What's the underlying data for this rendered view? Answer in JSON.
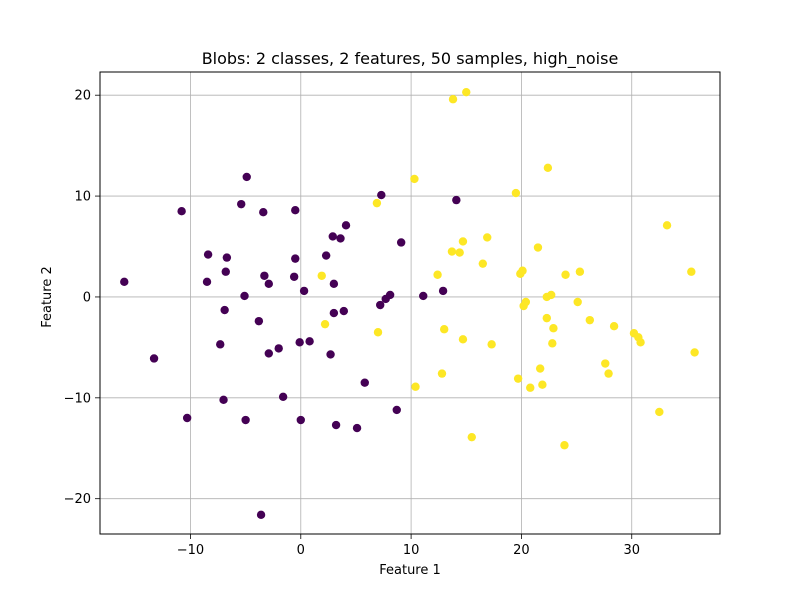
{
  "chart_data": {
    "type": "scatter",
    "title": "Blobs: 2 classes, 2 features, 50 samples, high_noise",
    "xlabel": "Feature 1",
    "ylabel": "Feature 2",
    "xlim": [
      -18.2,
      38.0
    ],
    "ylim": [
      -23.5,
      22.3
    ],
    "xticks": [
      -10,
      0,
      10,
      20,
      30
    ],
    "xtick_labels": [
      "−10",
      "0",
      "10",
      "20",
      "30"
    ],
    "yticks": [
      -20,
      -10,
      0,
      10,
      20
    ],
    "ytick_labels": [
      "−20",
      "−10",
      "0",
      "10",
      "20"
    ],
    "grid": true,
    "series": [
      {
        "color": "#440154",
        "points": [
          [
            -16.0,
            1.5
          ],
          [
            -13.3,
            -6.1
          ],
          [
            -10.8,
            8.5
          ],
          [
            -10.3,
            -12.0
          ],
          [
            -8.4,
            4.2
          ],
          [
            -8.5,
            1.5
          ],
          [
            -7.3,
            -4.7
          ],
          [
            -6.9,
            -1.3
          ],
          [
            -7.0,
            -10.2
          ],
          [
            -6.7,
            3.9
          ],
          [
            -6.8,
            2.5
          ],
          [
            -5.4,
            9.2
          ],
          [
            -5.1,
            0.1
          ],
          [
            -5.0,
            -12.2
          ],
          [
            -4.9,
            11.9
          ],
          [
            -3.8,
            -2.4
          ],
          [
            -3.6,
            -21.6
          ],
          [
            -3.4,
            8.4
          ],
          [
            -3.3,
            2.1
          ],
          [
            -2.9,
            1.3
          ],
          [
            -2.9,
            -5.6
          ],
          [
            -2.0,
            -5.1
          ],
          [
            -1.6,
            -9.9
          ],
          [
            -0.5,
            8.6
          ],
          [
            -0.5,
            3.8
          ],
          [
            -0.6,
            2.0
          ],
          [
            -0.1,
            -4.5
          ],
          [
            0.0,
            -12.2
          ],
          [
            0.3,
            0.6
          ],
          [
            0.8,
            -4.4
          ],
          [
            2.3,
            4.1
          ],
          [
            2.7,
            -5.7
          ],
          [
            2.9,
            6.0
          ],
          [
            3.0,
            -1.6
          ],
          [
            3.0,
            1.3
          ],
          [
            3.2,
            -12.7
          ],
          [
            3.6,
            5.8
          ],
          [
            3.9,
            -1.4
          ],
          [
            4.1,
            7.1
          ],
          [
            5.1,
            -13.0
          ],
          [
            5.8,
            -8.5
          ],
          [
            7.2,
            -0.8
          ],
          [
            7.3,
            10.1
          ],
          [
            7.7,
            -0.2
          ],
          [
            8.1,
            0.2
          ],
          [
            8.7,
            -11.2
          ],
          [
            9.1,
            5.4
          ],
          [
            11.1,
            0.1
          ],
          [
            12.9,
            0.6
          ],
          [
            14.1,
            9.6
          ]
        ]
      },
      {
        "color": "#fde725",
        "points": [
          [
            1.9,
            2.1
          ],
          [
            2.2,
            -2.7
          ],
          [
            6.9,
            9.3
          ],
          [
            7.0,
            -3.5
          ],
          [
            10.3,
            11.7
          ],
          [
            10.4,
            -8.9
          ],
          [
            12.4,
            2.2
          ],
          [
            12.8,
            -7.6
          ],
          [
            13.0,
            -3.2
          ],
          [
            13.7,
            4.5
          ],
          [
            13.8,
            19.6
          ],
          [
            14.4,
            4.4
          ],
          [
            14.7,
            -4.2
          ],
          [
            14.7,
            5.5
          ],
          [
            15.0,
            20.3
          ],
          [
            15.5,
            -13.9
          ],
          [
            16.5,
            3.3
          ],
          [
            16.9,
            5.9
          ],
          [
            17.3,
            -4.7
          ],
          [
            19.5,
            10.3
          ],
          [
            19.7,
            -8.1
          ],
          [
            19.9,
            2.3
          ],
          [
            20.1,
            2.6
          ],
          [
            20.2,
            -0.9
          ],
          [
            20.4,
            -0.5
          ],
          [
            20.8,
            -9.0
          ],
          [
            21.5,
            4.9
          ],
          [
            21.7,
            -7.1
          ],
          [
            21.9,
            -8.7
          ],
          [
            22.3,
            -2.1
          ],
          [
            22.3,
            0.0
          ],
          [
            22.4,
            12.8
          ],
          [
            22.7,
            0.2
          ],
          [
            22.8,
            -4.6
          ],
          [
            22.9,
            -3.1
          ],
          [
            23.9,
            -14.7
          ],
          [
            24.0,
            2.2
          ],
          [
            25.1,
            -0.5
          ],
          [
            25.3,
            2.5
          ],
          [
            26.2,
            -2.3
          ],
          [
            27.6,
            -6.6
          ],
          [
            27.9,
            -7.6
          ],
          [
            28.4,
            -2.9
          ],
          [
            30.2,
            -3.6
          ],
          [
            30.6,
            -4.0
          ],
          [
            30.8,
            -4.5
          ],
          [
            32.5,
            -11.4
          ],
          [
            33.2,
            7.1
          ],
          [
            35.4,
            2.5
          ],
          [
            35.7,
            -5.5
          ]
        ]
      }
    ]
  }
}
